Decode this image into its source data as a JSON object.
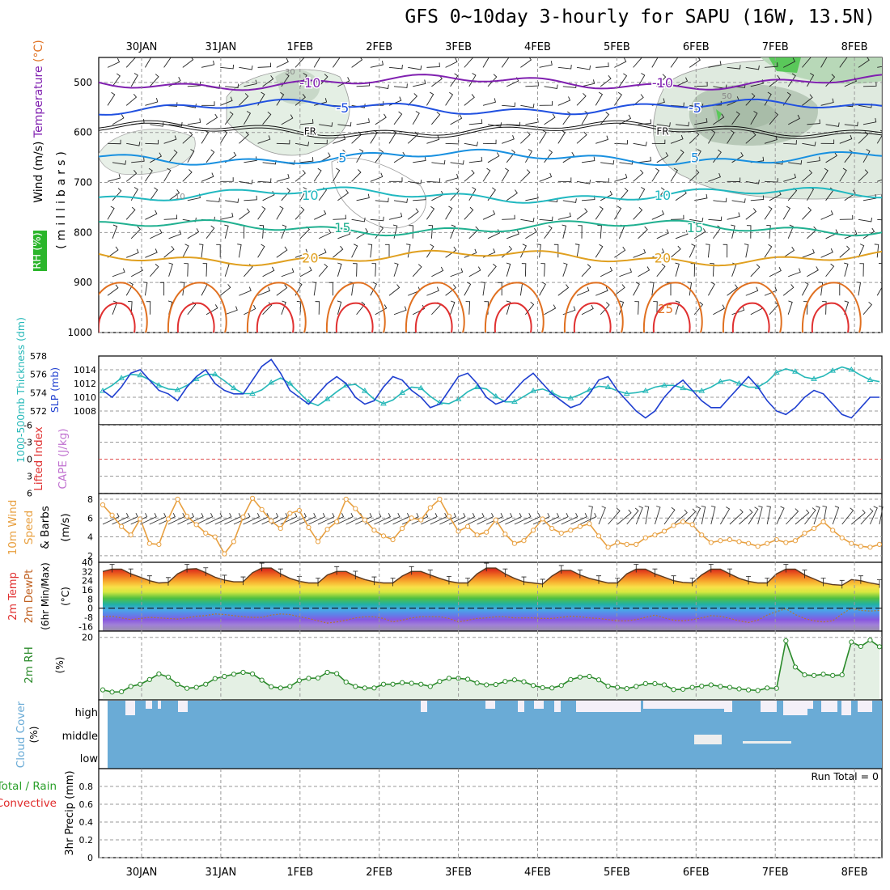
{
  "title": "GFS 0~10day 3-hourly for SAPU (16W, 13.5N)",
  "dates": [
    "30JAN",
    "31JAN",
    "1FEB",
    "2FEB",
    "3FEB",
    "4FEB",
    "5FEB",
    "6FEB",
    "7FEB",
    "8FEB"
  ],
  "colors": {
    "slp": "#1f3fd0",
    "thickness": "#26b8b8",
    "wind10": "#e8a040",
    "rh2m": "#2a8a2a",
    "cloud": "#6aabd6",
    "cloud_clear": "#f4f0f8",
    "precip_total": "#2aa02a",
    "precip_conv": "#e02a2a",
    "grid": "#9a9a9a",
    "rh_shade": "#dde8dd",
    "neg10": "#8020b0",
    "neg5": "#2050e0",
    "pos5": "#1890e0",
    "pos10": "#20b8c0",
    "pos15": "#20b090",
    "pos20": "#e0a020",
    "pos25": "#e07020",
    "pos30": "#e03030"
  },
  "chart_data": [
    {
      "id": "upper_air",
      "type": "contour",
      "ylabel_parts": [
        "Wind",
        "(m/s)",
        "Temperature",
        "(°C)",
        "RH (%)",
        "(millibars)"
      ],
      "y_ticks": [
        500,
        600,
        700,
        800,
        900,
        1000
      ],
      "ylim": [
        450,
        1000
      ],
      "temperature_contours": [
        {
          "value": -10,
          "label": "-10",
          "p": 500
        },
        {
          "value": -5,
          "label": "-5",
          "p": 550
        },
        {
          "value": 0,
          "label": "FR",
          "p": 595
        },
        {
          "value": 5,
          "label": "5",
          "p": 650
        },
        {
          "value": 10,
          "label": "10",
          "p": 725
        },
        {
          "value": 15,
          "label": "15",
          "p": 790
        },
        {
          "value": 20,
          "label": "20",
          "p": 850
        }
      ],
      "rh_labels": [
        "10",
        "30",
        "50"
      ],
      "annotations": [
        "25"
      ]
    },
    {
      "id": "slp_thickness",
      "type": "line",
      "ylabel_left": "1000-500mb Thickness (dm)",
      "ylabel_right": "SLP (mb)",
      "left_ticks": [
        572,
        574,
        576,
        578
      ],
      "right_ticks": [
        1008,
        1010,
        1012,
        1014
      ],
      "series": [
        {
          "name": "SLP (mb)",
          "values": [
            1011.0,
            1010.0,
            1011.5,
            1013.5,
            1014.0,
            1012.5,
            1011.0,
            1010.5,
            1009.5,
            1011.5,
            1013.0,
            1014.0,
            1012.0,
            1011.0,
            1010.5,
            1010.5,
            1012.5,
            1014.5,
            1015.5,
            1013.5,
            1011.0,
            1010.0,
            1009.0,
            1010.5,
            1012.0,
            1013.0,
            1012.0,
            1010.0,
            1009.0,
            1009.5,
            1011.5,
            1013.0,
            1012.5,
            1011.0,
            1010.0,
            1008.5,
            1009.0,
            1011.0,
            1013.0,
            1013.5,
            1012.0,
            1010.0,
            1009.0,
            1009.5,
            1011.0,
            1012.5,
            1013.5,
            1012.0,
            1010.5,
            1009.5,
            1008.5,
            1009.0,
            1010.5,
            1012.5,
            1013.0,
            1011.0,
            1009.5,
            1008.0,
            1007.0,
            1008.0,
            1010.0,
            1011.5,
            1012.5,
            1011.0,
            1009.5,
            1008.5,
            1008.5,
            1010.0,
            1011.5,
            1013.0,
            1011.5,
            1009.5,
            1008.0,
            1007.5,
            1008.5,
            1010.0,
            1011.0,
            1010.5,
            1009.0,
            1007.5,
            1007.0,
            1008.5,
            1010.0,
            1010.0
          ]
        },
        {
          "name": "Thickness (dm)",
          "values": [
            574.2,
            574.8,
            575.6,
            576.0,
            575.9,
            575.4,
            574.8,
            574.4,
            574.3,
            574.8,
            575.5,
            576.0,
            576.0,
            575.3,
            574.5,
            573.9,
            573.9,
            574.3,
            575.1,
            575.6,
            575.0,
            574.0,
            573.0,
            572.6,
            573.3,
            574.1,
            574.8,
            574.9,
            574.2,
            573.3,
            572.8,
            573.2,
            574.0,
            574.6,
            574.5,
            573.6,
            572.9,
            572.8,
            573.3,
            574.1,
            574.6,
            574.4,
            573.6,
            573.0,
            573.0,
            573.6,
            574.2,
            574.4,
            574.0,
            573.5,
            573.4,
            573.8,
            574.3,
            574.7,
            574.6,
            574.2,
            573.9,
            574.0,
            574.2,
            574.6,
            574.8,
            574.8,
            574.5,
            574.2,
            574.2,
            574.6,
            575.2,
            575.4,
            575.0,
            574.6,
            574.6,
            575.2,
            576.2,
            576.6,
            576.3,
            575.7,
            575.5,
            575.8,
            576.4,
            576.8,
            576.5,
            575.9,
            575.4,
            575.2
          ]
        }
      ]
    },
    {
      "id": "cape_li",
      "type": "line",
      "ylabel_left": "Lifted Index",
      "ylabel_right": "CAPE (J/kg)",
      "left_ticks": [
        6,
        3,
        0,
        -3,
        -6
      ],
      "series": []
    },
    {
      "id": "wind10m",
      "type": "line",
      "ylabel": "10m Wind Speed & Barbs (m/s)",
      "y_ticks": [
        2,
        4,
        6,
        8
      ],
      "ylim": [
        2,
        8.5
      ],
      "series": [
        {
          "name": "10m Wind Speed (m/s)",
          "values": [
            7.4,
            6.3,
            5.1,
            4.2,
            5.9,
            3.3,
            3.2,
            5.9,
            8.0,
            6.2,
            5.3,
            4.4,
            4.0,
            2.2,
            3.5,
            6.1,
            8.1,
            6.9,
            5.7,
            4.9,
            6.5,
            6.8,
            5.0,
            3.5,
            4.8,
            5.6,
            8.0,
            7.0,
            5.8,
            4.7,
            4.1,
            3.7,
            4.9,
            6.0,
            5.8,
            7.1,
            8.0,
            6.2,
            4.6,
            5.1,
            4.2,
            4.5,
            5.8,
            4.3,
            3.3,
            3.6,
            4.7,
            5.9,
            4.9,
            4.4,
            4.7,
            5.1,
            5.4,
            4.1,
            2.9,
            3.4,
            3.2,
            3.2,
            3.9,
            4.2,
            4.6,
            5.2,
            5.6,
            5.3,
            4.2,
            3.4,
            3.6,
            3.7,
            3.5,
            3.3,
            3.0,
            3.3,
            3.7,
            3.4,
            3.6,
            4.4,
            4.9,
            5.6,
            4.7,
            3.9,
            3.3,
            3.0,
            2.9,
            3.2
          ]
        }
      ]
    },
    {
      "id": "temp2m",
      "type": "area",
      "ylabel": "2m Temp 2m DewPt (6hr Min/Max) (°C)",
      "y_ticks": [
        40,
        32,
        24,
        16,
        8,
        0,
        -8,
        -16
      ],
      "ylim": [
        -20,
        40
      ],
      "series": [
        {
          "name": "2m Temp (°C)",
          "values": [
            32.0,
            34.0,
            34.0,
            30.0,
            27.0,
            24.0,
            22.0,
            22.5,
            30.0,
            34.0,
            34.5,
            31.0,
            27.0,
            24.5,
            23.0,
            23.0,
            31.0,
            35.0,
            35.0,
            30.0,
            26.0,
            23.5,
            22.0,
            22.0,
            29.0,
            32.0,
            32.0,
            28.0,
            25.0,
            23.0,
            22.0,
            22.0,
            28.0,
            32.0,
            32.0,
            29.0,
            26.0,
            23.5,
            22.0,
            22.0,
            30.0,
            35.0,
            35.0,
            30.0,
            26.0,
            23.0,
            22.0,
            21.0,
            28.0,
            33.0,
            33.0,
            29.0,
            26.0,
            24.0,
            22.0,
            22.0,
            30.0,
            34.0,
            34.0,
            30.0,
            27.0,
            24.0,
            22.5,
            22.0,
            29.0,
            34.0,
            34.0,
            30.0,
            26.0,
            23.5,
            22.0,
            22.0,
            30.0,
            34.0,
            34.0,
            29.0,
            25.5,
            22.0,
            20.5,
            20.0,
            25.0,
            24.0,
            22.0,
            20.5
          ]
        },
        {
          "name": "2m DewPt (°C)",
          "values": [
            -7.5,
            -7.0,
            -8.5,
            -10.0,
            -9.0,
            -8.0,
            -8.5,
            -9.0,
            -9.5,
            -8.5,
            -7.0,
            -6.5,
            -5.0,
            -5.5,
            -6.5,
            -7.5,
            -8.0,
            -8.0,
            -6.0,
            -5.0,
            -5.5,
            -7.5,
            -9.0,
            -11.0,
            -13.0,
            -12.0,
            -10.5,
            -8.5,
            -7.5,
            -7.5,
            -9.0,
            -12.0,
            -10.5,
            -8.5,
            -7.5,
            -7.5,
            -7.5,
            -9.0,
            -12.0,
            -10.5,
            -9.0,
            -8.5,
            -7.5,
            -7.5,
            -8.5,
            -8.5,
            -8.5,
            -9.0,
            -9.0,
            -8.0,
            -7.0,
            -7.5,
            -8.5,
            -9.0,
            -10.0,
            -11.0,
            -11.0,
            -10.0,
            -8.0,
            -6.0,
            -8.5,
            -10.5,
            -11.0,
            -10.0,
            -8.5,
            -6.5,
            -7.0,
            -9.0,
            -11.0,
            -12.5,
            -10.5,
            -6.0,
            -3.0,
            -0.5,
            -5.5,
            -9.0,
            -11.0,
            -12.0,
            -11.0,
            -5.0,
            0.0,
            -2.0,
            -2.5,
            -2.0
          ]
        }
      ]
    },
    {
      "id": "rh2m",
      "type": "area",
      "ylabel": "2m RH (%)",
      "y_ticks": [
        20
      ],
      "ylim": [
        0,
        22
      ],
      "series": [
        {
          "name": "2m RH (%)",
          "values": [
            3.2,
            2.5,
            2.6,
            4.3,
            5.0,
            6.5,
            8.3,
            7.3,
            5.0,
            3.7,
            4.0,
            5.0,
            6.8,
            7.5,
            8.2,
            8.8,
            8.3,
            6.3,
            4.2,
            3.8,
            4.3,
            6.2,
            6.9,
            7.0,
            8.8,
            8.4,
            5.7,
            4.3,
            3.8,
            3.8,
            5.0,
            5.0,
            5.5,
            5.3,
            5.0,
            4.3,
            5.9,
            6.9,
            6.9,
            6.6,
            5.4,
            4.8,
            4.9,
            5.9,
            6.4,
            5.8,
            4.6,
            3.9,
            3.8,
            4.6,
            6.5,
            7.3,
            7.5,
            6.4,
            4.4,
            4.0,
            3.6,
            4.3,
            5.2,
            5.2,
            4.8,
            3.3,
            3.4,
            4.0,
            4.4,
            4.8,
            4.3,
            4.0,
            3.5,
            3.2,
            3.0,
            3.8,
            3.7,
            18.9,
            10.5,
            8.0,
            7.8,
            8.2,
            7.8,
            8.0,
            18.5,
            17.1,
            19.1,
            17.0
          ]
        }
      ]
    },
    {
      "id": "cloud_cover",
      "type": "area",
      "ylabel": "Cloud Cover (%)",
      "levels": [
        "high",
        "middle",
        "low"
      ]
    },
    {
      "id": "precip",
      "type": "bar",
      "ylabel": "3hr Precip (mm)",
      "ylabel_parts": [
        "Total / Rain",
        "Convective"
      ],
      "y_ticks": [
        "0",
        "0.2",
        "0.4",
        "0.6",
        "0.8"
      ],
      "ylim": [
        0,
        1
      ],
      "run_total": "Run Total = 0",
      "series": []
    }
  ]
}
